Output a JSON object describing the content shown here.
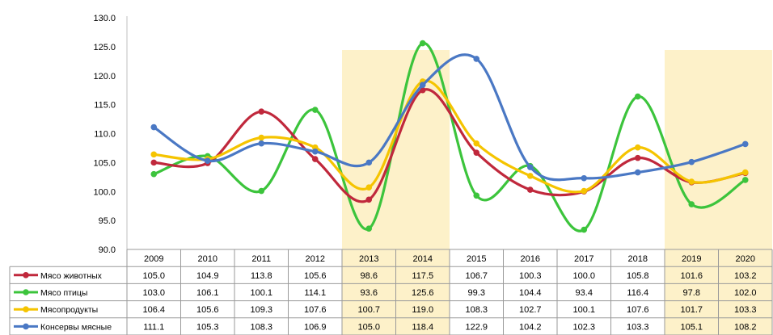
{
  "chart_data": {
    "type": "line",
    "categories": [
      "2009",
      "2010",
      "2011",
      "2012",
      "2013",
      "2014",
      "2015",
      "2016",
      "2017",
      "2018",
      "2019",
      "2020"
    ],
    "ylim": [
      90,
      130
    ],
    "y_ticks": [
      "90.0",
      "95.0",
      "100.0",
      "105.0",
      "110.0",
      "115.0",
      "120.0",
      "125.0",
      "130.0"
    ],
    "highlighted_categories": [
      "2013",
      "2014",
      "2019",
      "2020"
    ],
    "highlight_color": "#fdf1c9",
    "grid": false,
    "legend_placement": "data-table",
    "series": [
      {
        "name": "Мясо животных",
        "color": "#c0283c",
        "values": [
          105.0,
          104.9,
          113.8,
          105.6,
          98.6,
          117.5,
          106.7,
          100.3,
          100.0,
          105.8,
          101.6,
          103.2
        ],
        "labels": [
          "105.0",
          "104.9",
          "113.8",
          "105.6",
          "98.6",
          "117.5",
          "106.7",
          "100.3",
          "100.0",
          "105.8",
          "101.6",
          "103.2"
        ]
      },
      {
        "name": "Мясо птицы",
        "color": "#3cc43c",
        "values": [
          103.0,
          106.1,
          100.1,
          114.1,
          93.6,
          125.6,
          99.3,
          104.4,
          93.4,
          116.4,
          97.8,
          102.0
        ],
        "labels": [
          "103.0",
          "106.1",
          "100.1",
          "114.1",
          "93.6",
          "125.6",
          "99.3",
          "104.4",
          "93.4",
          "116.4",
          "97.8",
          "102.0"
        ]
      },
      {
        "name": "Мясопродукты",
        "color": "#f5c400",
        "values": [
          106.4,
          105.6,
          109.3,
          107.6,
          100.7,
          119.0,
          108.3,
          102.7,
          100.1,
          107.6,
          101.7,
          103.3
        ],
        "labels": [
          "106.4",
          "105.6",
          "109.3",
          "107.6",
          "100.7",
          "119.0",
          "108.3",
          "102.7",
          "100.1",
          "107.6",
          "101.7",
          "103.3"
        ]
      },
      {
        "name": "Консервы мясные",
        "color": "#4a78c4",
        "values": [
          111.1,
          105.3,
          108.3,
          106.9,
          105.0,
          118.4,
          122.9,
          104.2,
          102.3,
          103.3,
          105.1,
          108.2
        ],
        "labels": [
          "111.1",
          "105.3",
          "108.3",
          "106.9",
          "105.0",
          "118.4",
          "122.9",
          "104.2",
          "102.3",
          "103.3",
          "105.1",
          "108.2"
        ]
      }
    ]
  }
}
